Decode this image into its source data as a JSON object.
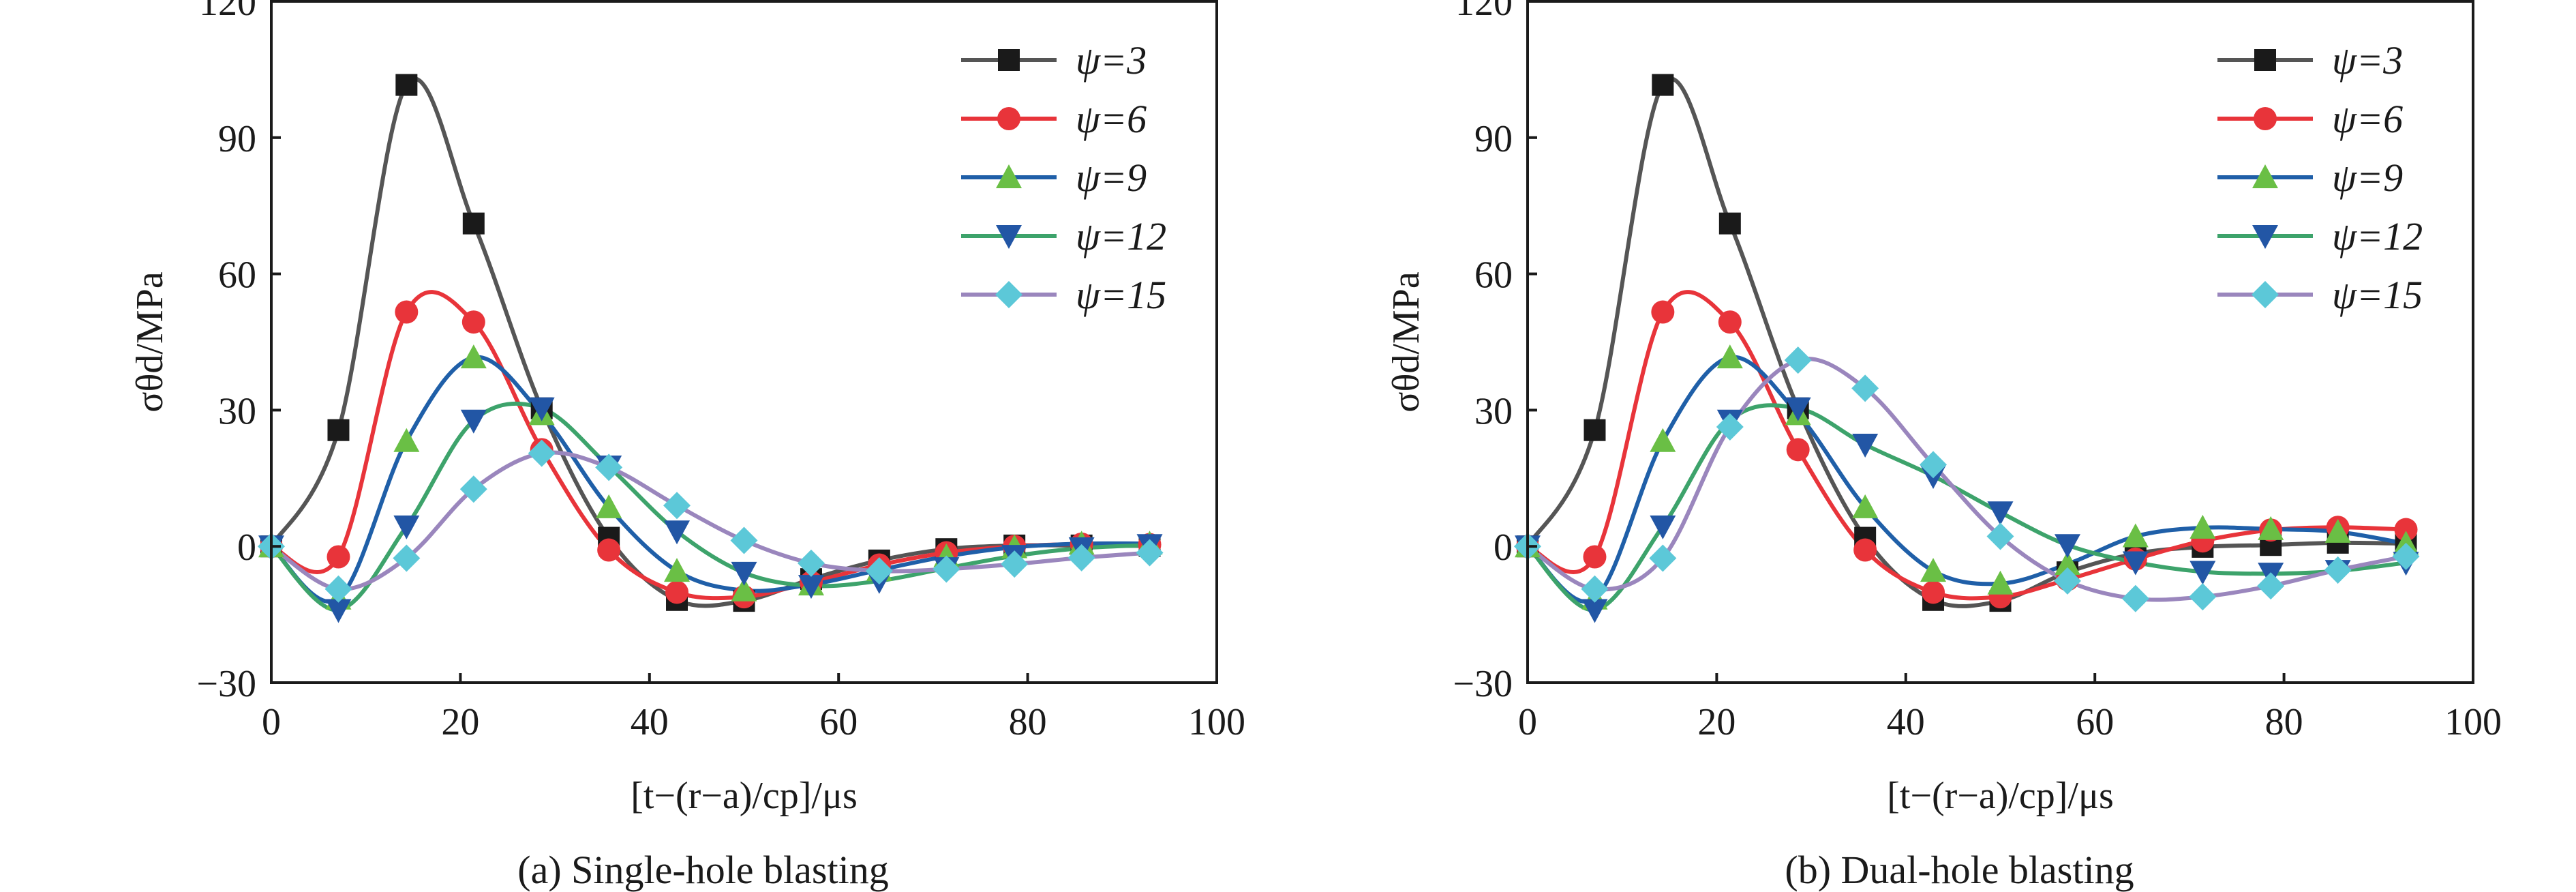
{
  "colors": {
    "psi3": "#555555",
    "psi3_marker": "#1a1a1a",
    "psi6": "#e8343a",
    "psi9_line": "#1f5fa8",
    "psi9_marker": "#6abf45",
    "psi12_line": "#3da36b",
    "psi12_marker": "#2256a5",
    "psi15_line": "#9a86bd",
    "psi15_marker": "#5cc8d8"
  },
  "chart_data": [
    {
      "type": "line",
      "caption": "(a) Single-hole blasting",
      "ylabel": "σθd/MPa",
      "xlabel": "[t−(r−a)/cp]/μs",
      "xlim": [
        0,
        100
      ],
      "ylim": [
        -30,
        120
      ],
      "xticks": [
        "0",
        "20",
        "40",
        "60",
        "80",
        "100"
      ],
      "yticks": [
        "−30",
        "0",
        "30",
        "60",
        "90",
        "120"
      ],
      "legend": "top-right",
      "series": [
        {
          "name": "ψ=3",
          "marker": "square",
          "points": [
            [
              0,
              0
            ],
            [
              7.1,
              25.6
            ],
            [
              14.3,
              101.6
            ],
            [
              21.4,
              71.1
            ],
            [
              28.6,
              30.4
            ],
            [
              35.7,
              1.9
            ],
            [
              42.9,
              -11.8
            ],
            [
              50,
              -12
            ],
            [
              57.1,
              -7.2
            ],
            [
              64.3,
              -3.1
            ],
            [
              71.4,
              -0.6
            ],
            [
              78.6,
              0.2
            ],
            [
              85.7,
              0.2
            ],
            [
              92.9,
              0.1
            ]
          ]
        },
        {
          "name": "ψ=6",
          "marker": "circle",
          "points": [
            [
              0,
              0
            ],
            [
              7.1,
              -2.3
            ],
            [
              14.3,
              51.6
            ],
            [
              21.4,
              49.4
            ],
            [
              28.6,
              21.3
            ],
            [
              35.7,
              -0.8
            ],
            [
              42.9,
              -10.1
            ],
            [
              50,
              -11.1
            ],
            [
              57.1,
              -7.9
            ],
            [
              64.3,
              -4.1
            ],
            [
              71.4,
              -1.4
            ],
            [
              78.6,
              0
            ],
            [
              85.7,
              0.5
            ],
            [
              92.9,
              0.4
            ]
          ]
        },
        {
          "name": "ψ=9",
          "marker": "triangle-up",
          "points": [
            [
              0,
              0
            ],
            [
              7.1,
              -11.5
            ],
            [
              14.3,
              23.2
            ],
            [
              21.4,
              41.6
            ],
            [
              28.6,
              29.1
            ],
            [
              35.7,
              8.6
            ],
            [
              42.9,
              -5.4
            ],
            [
              50,
              -9.7
            ],
            [
              57.1,
              -8.4
            ],
            [
              64.3,
              -5.2
            ],
            [
              71.4,
              -2.2
            ],
            [
              78.6,
              -0.2
            ],
            [
              85.7,
              0.6
            ],
            [
              92.9,
              0.6
            ]
          ]
        },
        {
          "name": "ψ=12",
          "marker": "triangle-down",
          "points": [
            [
              0,
              0
            ],
            [
              7.1,
              -14
            ],
            [
              14.3,
              4.4
            ],
            [
              21.4,
              27.7
            ],
            [
              28.6,
              30.4
            ],
            [
              35.7,
              17.6
            ],
            [
              42.9,
              3.3
            ],
            [
              50,
              -5.8
            ],
            [
              57.1,
              -8.7
            ],
            [
              64.3,
              -7.6
            ],
            [
              71.4,
              -4.8
            ],
            [
              78.6,
              -2.1
            ],
            [
              85.7,
              -0.4
            ],
            [
              92.9,
              0.3
            ]
          ]
        },
        {
          "name": "ψ=15",
          "marker": "diamond",
          "points": [
            [
              0,
              0
            ],
            [
              7.1,
              -9.4
            ],
            [
              14.3,
              -2.6
            ],
            [
              21.4,
              12.6
            ],
            [
              28.6,
              20.5
            ],
            [
              35.7,
              17.4
            ],
            [
              42.9,
              9
            ],
            [
              50,
              1.3
            ],
            [
              57.1,
              -3.7
            ],
            [
              64.3,
              -5.4
            ],
            [
              71.4,
              -5
            ],
            [
              78.6,
              -3.9
            ],
            [
              85.7,
              -2.5
            ],
            [
              92.9,
              -1.4
            ]
          ]
        }
      ]
    },
    {
      "type": "line",
      "caption": "(b) Dual-hole blasting",
      "ylabel": "σθd/MPa",
      "xlabel": "[t−(r−a)/cp]/μs",
      "xlim": [
        0,
        100
      ],
      "ylim": [
        -30,
        120
      ],
      "xticks": [
        "0",
        "20",
        "40",
        "60",
        "80",
        "100"
      ],
      "yticks": [
        "−30",
        "0",
        "30",
        "60",
        "90",
        "120"
      ],
      "legend": "top-right",
      "series": [
        {
          "name": "ψ=3",
          "marker": "square",
          "points": [
            [
              0,
              0
            ],
            [
              7.1,
              25.6
            ],
            [
              14.3,
              101.6
            ],
            [
              21.4,
              71.1
            ],
            [
              28.6,
              30.4
            ],
            [
              35.7,
              1.9
            ],
            [
              42.9,
              -11.8
            ],
            [
              50,
              -12
            ],
            [
              57.1,
              -5.7
            ],
            [
              64.3,
              -1.6
            ],
            [
              71.4,
              -0.1
            ],
            [
              78.6,
              0.3
            ],
            [
              85.7,
              0.8
            ],
            [
              92.9,
              0.6
            ]
          ]
        },
        {
          "name": "ψ=6",
          "marker": "circle",
          "points": [
            [
              0,
              0
            ],
            [
              7.1,
              -2.3
            ],
            [
              14.3,
              51.6
            ],
            [
              21.4,
              49.4
            ],
            [
              28.6,
              21.3
            ],
            [
              35.7,
              -0.8
            ],
            [
              42.9,
              -10.1
            ],
            [
              50,
              -11.1
            ],
            [
              57.1,
              -7.3
            ],
            [
              64.3,
              -2.8
            ],
            [
              71.4,
              1.2
            ],
            [
              78.6,
              3.6
            ],
            [
              85.7,
              4.2
            ],
            [
              92.9,
              3.7
            ]
          ]
        },
        {
          "name": "ψ=9",
          "marker": "triangle-up",
          "points": [
            [
              0,
              0
            ],
            [
              7.1,
              -11.5
            ],
            [
              14.3,
              23.2
            ],
            [
              21.4,
              41.6
            ],
            [
              28.6,
              29.1
            ],
            [
              35.7,
              8.6
            ],
            [
              42.9,
              -5.4
            ],
            [
              50,
              -8.2
            ],
            [
              57.1,
              -3.9
            ],
            [
              64.3,
              2.2
            ],
            [
              71.4,
              4.1
            ],
            [
              78.6,
              3.8
            ],
            [
              85.7,
              3.2
            ],
            [
              92.9,
              0.6
            ]
          ]
        },
        {
          "name": "ψ=12",
          "marker": "triangle-down",
          "points": [
            [
              0,
              0
            ],
            [
              7.1,
              -14
            ],
            [
              14.3,
              4.4
            ],
            [
              21.4,
              27.7
            ],
            [
              28.6,
              30.4
            ],
            [
              35.7,
              22.4
            ],
            [
              42.9,
              15.5
            ],
            [
              50,
              7.5
            ],
            [
              57.1,
              0.3
            ],
            [
              64.3,
              -3.5
            ],
            [
              71.4,
              -5.6
            ],
            [
              78.6,
              -6
            ],
            [
              85.7,
              -5.4
            ],
            [
              92.9,
              -3.6
            ]
          ]
        },
        {
          "name": "ψ=15",
          "marker": "diamond",
          "points": [
            [
              0,
              0
            ],
            [
              7.1,
              -9.4
            ],
            [
              14.3,
              -2.6
            ],
            [
              21.4,
              26.3
            ],
            [
              28.6,
              41
            ],
            [
              35.7,
              34.8
            ],
            [
              42.9,
              18
            ],
            [
              50,
              2.2
            ],
            [
              57.1,
              -7.6
            ],
            [
              64.3,
              -11.5
            ],
            [
              71.4,
              -11.1
            ],
            [
              78.6,
              -8.7
            ],
            [
              85.7,
              -5.2
            ],
            [
              92.9,
              -2.2
            ]
          ]
        }
      ]
    }
  ]
}
